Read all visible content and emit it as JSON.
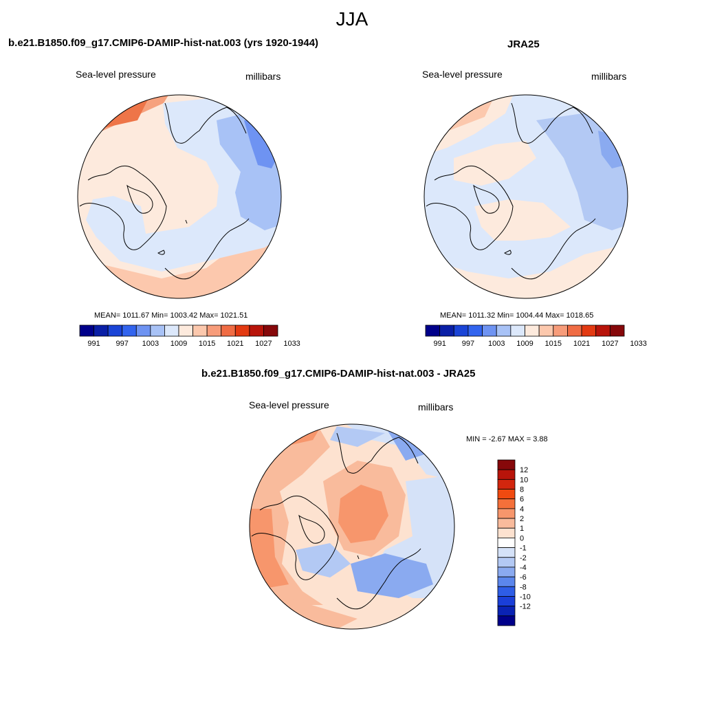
{
  "title": "JJA",
  "panels": [
    {
      "title": "b.e21.B1850.f09_g17.CMIP6-DAMIP-hist-nat.003 (yrs 1920-1944)",
      "left_label": "Sea-level pressure",
      "right_label": "millibars",
      "stats": "MEAN= 1011.67  Min= 1003.42  Max= 1021.51"
    },
    {
      "title": "JRA25",
      "left_label": "Sea-level pressure",
      "right_label": "millibars",
      "stats": "MEAN= 1011.32  Min= 1004.44  Max= 1018.65"
    },
    {
      "title": "b.e21.B1850.f09_g17.CMIP6-DAMIP-hist-nat.003 - JRA25",
      "left_label": "Sea-level pressure",
      "right_label": "millibars",
      "stats": "MIN =  -2.67 MAX =   3.88"
    }
  ],
  "colorbar_horizontal": {
    "colors": [
      "#00008a",
      "#0a1fa6",
      "#1a44d6",
      "#3264ee",
      "#6e93f2",
      "#a8c2f6",
      "#dce8fb",
      "#fdeadd",
      "#fcc8ad",
      "#f79c7a",
      "#f06c44",
      "#e33a12",
      "#b8140a",
      "#86080a"
    ],
    "tick_labels": [
      "991",
      "997",
      "1003",
      "1009",
      "1015",
      "1021",
      "1027",
      "1033"
    ]
  },
  "colorbar_vertical": {
    "colors_top_to_bottom": [
      "#86080a",
      "#b8140a",
      "#d2260e",
      "#f04a10",
      "#f5703a",
      "#f7966c",
      "#f9bb9c",
      "#fde2d0",
      "#ffffff",
      "#d5e2f8",
      "#b3c9f4",
      "#8aaaf0",
      "#5b86ec",
      "#2e5de6",
      "#1a3fd8",
      "#0a23b4",
      "#00008a"
    ],
    "tick_labels": [
      "12",
      "10",
      "8",
      "6",
      "4",
      "2",
      "1",
      "0",
      "-1",
      "-2",
      "-4",
      "-6",
      "-8",
      "-10",
      "-12"
    ]
  }
}
